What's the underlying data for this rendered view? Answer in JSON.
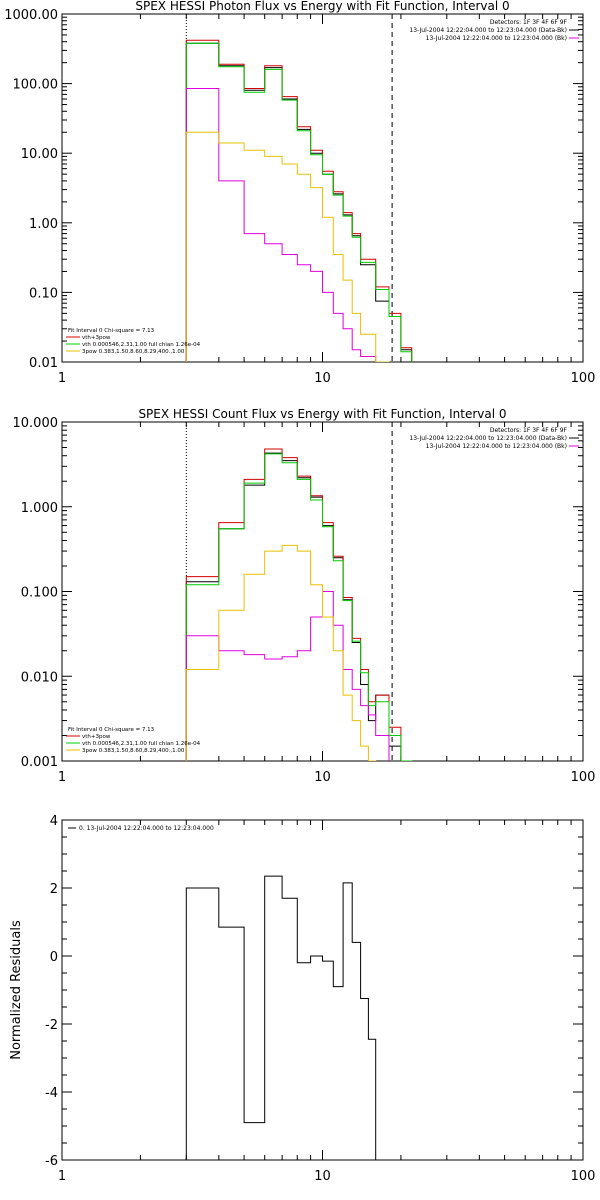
{
  "colors": {
    "black": "#000000",
    "red": "#d40000",
    "green": "#00cc00",
    "magenta": "#e000e0",
    "gold": "#e8c000"
  },
  "chart_data": [
    {
      "type": "line",
      "title": "SPEX HESSI Photon Flux vs Energy with Fit Function, Interval 0",
      "x_scale": "log",
      "y_scale": "log",
      "xlim": [
        1,
        100
      ],
      "ylim": [
        0.01,
        1000
      ],
      "xticks": [
        {
          "v": 1,
          "label": "1"
        },
        {
          "v": 10,
          "label": "10"
        },
        {
          "v": 100,
          "label": "100"
        }
      ],
      "yticks": [
        {
          "v": 0.01,
          "label": "0.01"
        },
        {
          "v": 0.1,
          "label": "0.10"
        },
        {
          "v": 1,
          "label": "1.00"
        },
        {
          "v": 10,
          "label": "10.00"
        },
        {
          "v": 100,
          "label": "100.00"
        },
        {
          "v": 1000,
          "label": "1000.00"
        }
      ],
      "vlines": [
        {
          "x": 3,
          "style": "dotted"
        },
        {
          "x": 18.5,
          "style": "dashed"
        }
      ],
      "edges": [
        3,
        3.5,
        4,
        5,
        6,
        7,
        8,
        9,
        10,
        11,
        12,
        13,
        14,
        16,
        18,
        20,
        22
      ],
      "legend_top": [
        {
          "text": "Detectors: 1F 3F 4F 6F 9F",
          "color": "black"
        },
        {
          "text": "13-Jul-2004 12:22:04.000 to 12:23:04.000 (Data-Bk)",
          "color": "black"
        },
        {
          "text": "13-Jul-2004 12:22:04.000 to 12:23:04.000 (Bk)",
          "color": "magenta"
        }
      ],
      "legend_fit": [
        {
          "text": "Fit Interval 0   Chi-square = 7.13",
          "color": "black"
        },
        {
          "text": "vth+3pow",
          "color": "red"
        },
        {
          "text": "vth 0.000546,2.31,1.00  full chian 1.26e-04",
          "color": "green"
        },
        {
          "text": "3pow 0.383,1.50,8.60,8.29,400.,1.00",
          "color": "gold"
        }
      ],
      "series": [
        {
          "color": "black",
          "values": [
            380,
            380,
            180,
            80,
            170,
            60,
            22,
            10,
            5,
            2.6,
            1.3,
            0.65,
            0.25,
            0.075,
            0.045,
            0.015
          ]
        },
        {
          "color": "red",
          "values": [
            420,
            420,
            190,
            85,
            180,
            65,
            24,
            11,
            5.5,
            2.8,
            1.4,
            0.7,
            0.3,
            0.12,
            0.05,
            0.016
          ]
        },
        {
          "color": "green",
          "values": [
            380,
            380,
            175,
            75,
            160,
            58,
            21,
            9.5,
            5,
            2.5,
            1.25,
            0.62,
            0.27,
            0.11,
            0.045,
            0.014
          ]
        },
        {
          "color": "magenta",
          "values": [
            85,
            85,
            4,
            0.7,
            0.5,
            0.35,
            0.25,
            0.2,
            0.1,
            0.05,
            0.03,
            0.015,
            0.012
          ]
        },
        {
          "color": "gold",
          "values": [
            20,
            20,
            14,
            11,
            9,
            7,
            5,
            3.2,
            1.2,
            0.35,
            0.15,
            0.05,
            0.025,
            0.01
          ]
        }
      ]
    },
    {
      "type": "line",
      "title": "SPEX HESSI Count Flux vs Energy with Fit Function, Interval 0",
      "x_scale": "log",
      "y_scale": "log",
      "xlim": [
        1,
        100
      ],
      "ylim": [
        0.001,
        10
      ],
      "xticks": [
        {
          "v": 1,
          "label": "1"
        },
        {
          "v": 10,
          "label": "10"
        },
        {
          "v": 100,
          "label": "100"
        }
      ],
      "yticks": [
        {
          "v": 0.001,
          "label": "0.001"
        },
        {
          "v": 0.01,
          "label": "0.010"
        },
        {
          "v": 0.1,
          "label": "0.100"
        },
        {
          "v": 1,
          "label": "1.000"
        },
        {
          "v": 10,
          "label": "10.000"
        }
      ],
      "vlines": [
        {
          "x": 3,
          "style": "dotted"
        },
        {
          "x": 18.5,
          "style": "dashed"
        }
      ],
      "edges": [
        3,
        4,
        5,
        6,
        7,
        8,
        9,
        10,
        11,
        12,
        13,
        14,
        15,
        16,
        18,
        20,
        22
      ],
      "legend_top": [
        {
          "text": "Detectors: 1F 3F 4F 6F 9F",
          "color": "black"
        },
        {
          "text": "13-Jul-2004 12:22:04.000 to 12:23:04.000 (Data-Bk)",
          "color": "black"
        },
        {
          "text": "13-Jul-2004 12:22:04.000 to 12:23:04.000 (Bk)",
          "color": "magenta"
        }
      ],
      "legend_fit": [
        {
          "text": "Fit Interval 0   Chi-square = 7.13",
          "color": "black"
        },
        {
          "text": "vth+3pow",
          "color": "red"
        },
        {
          "text": "vth 0.000546,2.31,1.00  full chian 1.26e-04",
          "color": "green"
        },
        {
          "text": "3pow 0.383,1.50,8.60,8.29,400.,1.00",
          "color": "gold"
        }
      ],
      "series": [
        {
          "color": "black",
          "values": [
            0.13,
            0.55,
            1.8,
            4.3,
            3.5,
            2.2,
            1.3,
            0.6,
            0.25,
            0.08,
            0.025,
            0.008,
            0.003,
            0.006,
            0.0015,
            0.001
          ]
        },
        {
          "color": "red",
          "values": [
            0.15,
            0.65,
            2.1,
            4.8,
            3.8,
            2.3,
            1.35,
            0.65,
            0.26,
            0.085,
            0.028,
            0.012,
            0.005,
            0.006,
            0.0025,
            0.001
          ]
        },
        {
          "color": "green",
          "values": [
            0.12,
            0.55,
            1.9,
            4.2,
            3.3,
            2.1,
            1.2,
            0.58,
            0.23,
            0.078,
            0.026,
            0.011,
            0.0045,
            0.005,
            0.002,
            0.001
          ]
        },
        {
          "color": "magenta",
          "values": [
            0.03,
            0.02,
            0.018,
            0.016,
            0.017,
            0.02,
            0.05,
            0.1,
            0.04,
            0.012,
            0.007,
            0.0045,
            0.0035,
            0.002
          ]
        },
        {
          "color": "gold",
          "values": [
            0.012,
            0.06,
            0.16,
            0.3,
            0.35,
            0.3,
            0.12,
            0.05,
            0.02,
            0.006,
            0.003,
            0.0015,
            0.001
          ]
        }
      ]
    },
    {
      "type": "line",
      "title": "",
      "ylabel": "Normalized Residuals",
      "x_scale": "log",
      "y_scale": "linear",
      "xlim": [
        1,
        100
      ],
      "ylim": [
        -6,
        4
      ],
      "xticks": [
        {
          "v": 1,
          "label": "1"
        },
        {
          "v": 10,
          "label": "10"
        },
        {
          "v": 100,
          "label": "100"
        }
      ],
      "yticks": [
        {
          "v": -6,
          "label": "-6"
        },
        {
          "v": -4,
          "label": "-4"
        },
        {
          "v": -2,
          "label": "-2"
        },
        {
          "v": 0,
          "label": "0"
        },
        {
          "v": 2,
          "label": "2"
        },
        {
          "v": 4,
          "label": "4"
        }
      ],
      "legend_top": [
        {
          "text": "0. 13-Jul-2004 12:22:04.000 to 12:23:04.000",
          "color": "black"
        }
      ],
      "edges": [
        3,
        4,
        5,
        6,
        7,
        8,
        9,
        10,
        11,
        12,
        13,
        14,
        15,
        16,
        18
      ],
      "series": [
        {
          "color": "black",
          "values": [
            2.0,
            0.85,
            -4.9,
            2.35,
            1.7,
            -0.2,
            0,
            -0.15,
            -0.9,
            2.15,
            0.4,
            -1.25,
            -2.45,
            -6.0
          ]
        }
      ]
    }
  ]
}
